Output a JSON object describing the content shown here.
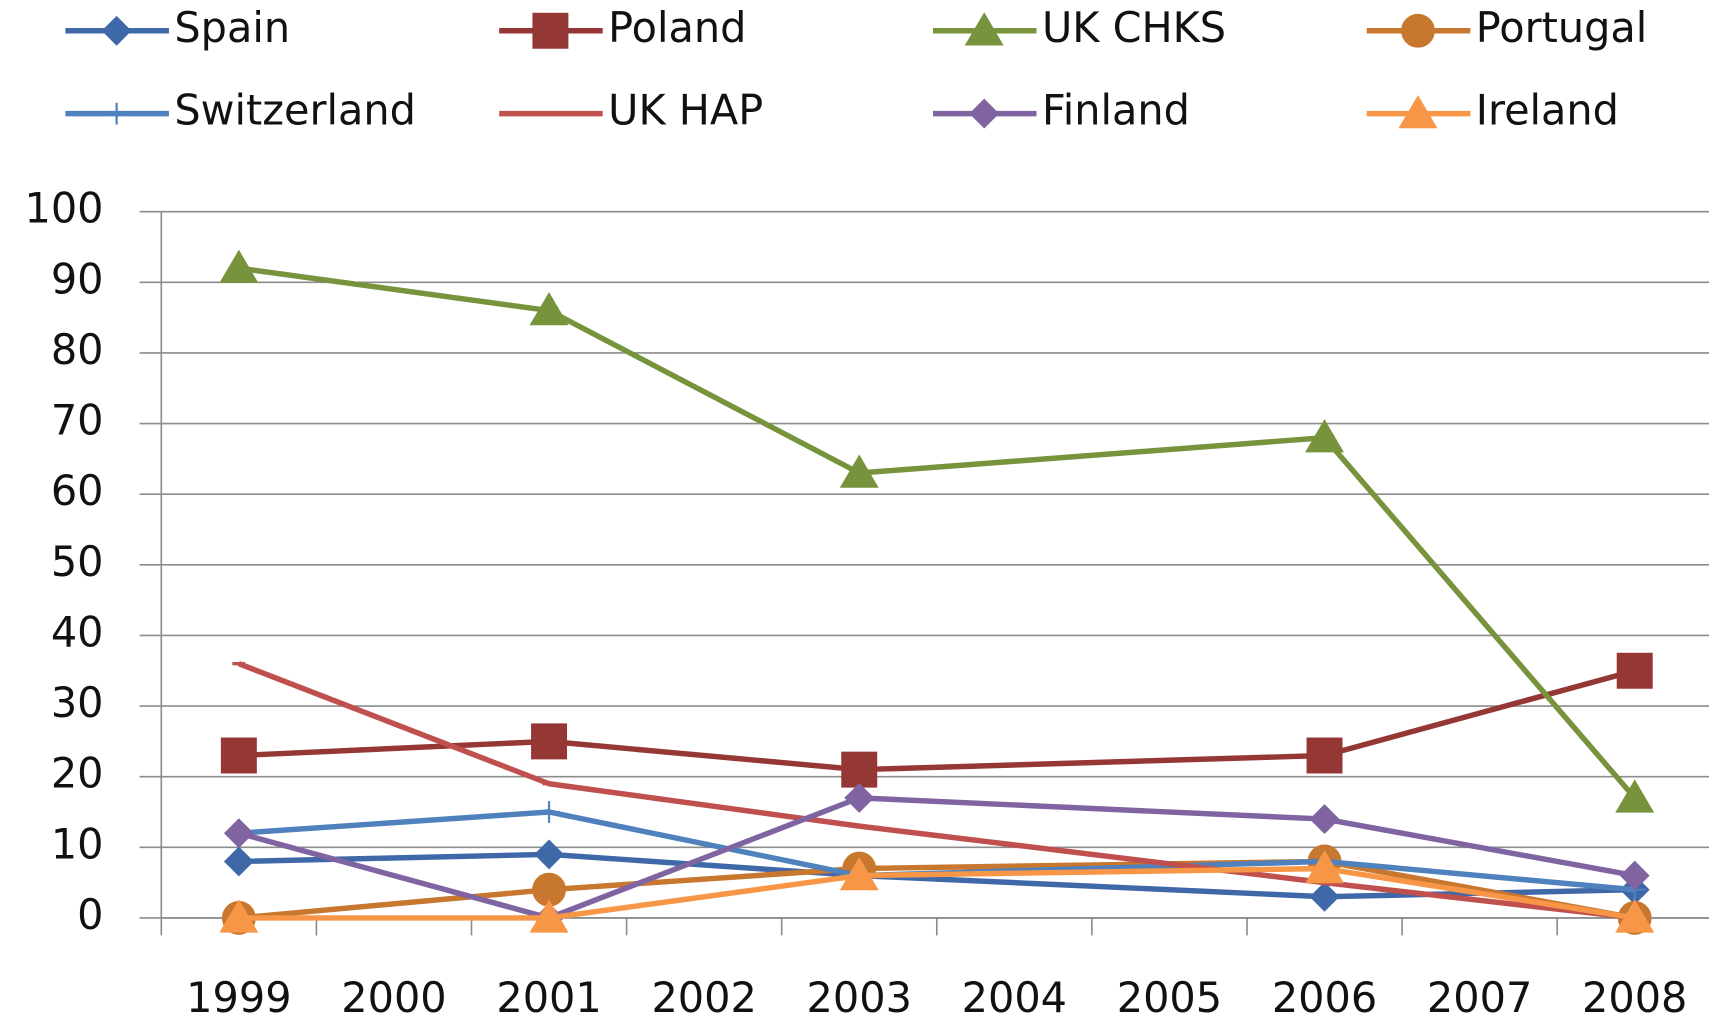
{
  "chart_data": {
    "type": "line",
    "x": [
      1999,
      2001,
      2003,
      2006,
      2008
    ],
    "xlim": [
      1998.5,
      2008.5
    ],
    "xticks": [
      1999,
      2000,
      2001,
      2002,
      2003,
      2004,
      2005,
      2006,
      2007,
      2008
    ],
    "ylim": [
      0,
      100
    ],
    "yticks": [
      0,
      10,
      20,
      30,
      40,
      50,
      60,
      70,
      80,
      90,
      100
    ],
    "grid": true,
    "legend": "top",
    "series": [
      {
        "name": "Spain",
        "color": "#3f68a8",
        "marker": "diamond",
        "values": [
          8,
          9,
          6,
          3,
          4
        ]
      },
      {
        "name": "Poland",
        "color": "#953735",
        "marker": "square",
        "values": [
          23,
          25,
          21,
          23,
          35
        ]
      },
      {
        "name": "UK CHKS",
        "color": "#77933c",
        "marker": "triangle",
        "values": [
          92,
          86,
          63,
          68,
          17
        ]
      },
      {
        "name": "Portugal",
        "color": "#c8772f",
        "marker": "circle",
        "values": [
          0,
          4,
          7,
          8,
          0
        ]
      },
      {
        "name": "Switzerland",
        "color": "#4f81bd",
        "marker": "plus",
        "values": [
          12,
          15,
          6,
          8,
          4
        ]
      },
      {
        "name": "UK HAP",
        "color": "#c0504d",
        "marker": "none",
        "values": [
          36,
          19,
          13,
          5,
          0
        ]
      },
      {
        "name": "Finland",
        "color": "#8064a2",
        "marker": "diamond",
        "values": [
          12,
          0,
          17,
          14,
          6
        ]
      },
      {
        "name": "Ireland",
        "color": "#f79646",
        "marker": "triangle",
        "values": [
          0,
          0,
          6,
          7,
          0
        ]
      }
    ]
  }
}
